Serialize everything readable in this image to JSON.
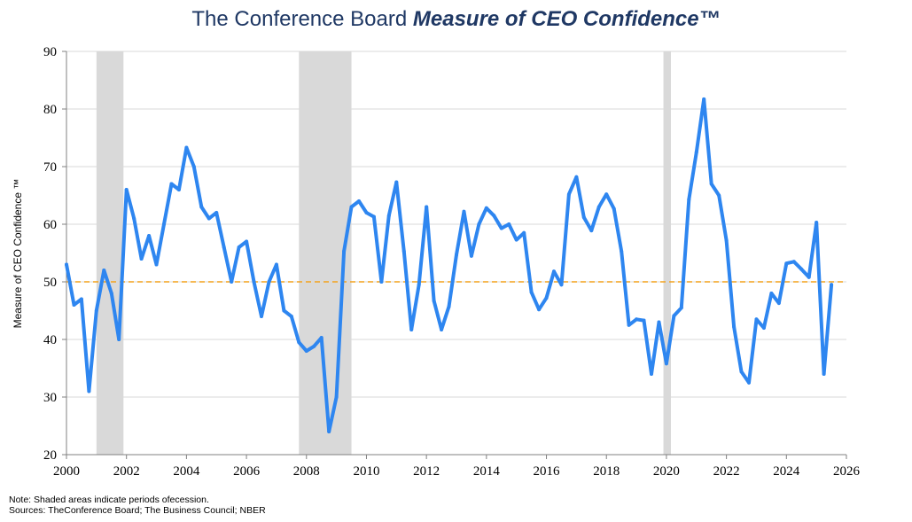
{
  "title": {
    "prefix": "The Conference Board ",
    "emphasis": "Measure of CEO Confidence™"
  },
  "notes": {
    "line1": "Note: Shaded areas indicate periods ofecession.",
    "line2": "Sources: TheConference Board; The Business Council; NBER"
  },
  "colors": {
    "line": "#2e86f0",
    "reference": "#f4a21c",
    "recession": "#d9d9d9",
    "grid": "#d9d9d9",
    "title": "#1f3864"
  },
  "chart_data": {
    "type": "line",
    "title": "The Conference Board Measure of CEO Confidence™",
    "xlabel": "",
    "ylabel": "Measure of CEO Confidence ™",
    "xlim": [
      2000,
      2026
    ],
    "ylim": [
      20,
      90
    ],
    "x_ticks": [
      2000,
      2002,
      2004,
      2006,
      2008,
      2010,
      2012,
      2014,
      2016,
      2018,
      2020,
      2022,
      2024,
      2026
    ],
    "y_ticks": [
      20,
      30,
      40,
      50,
      60,
      70,
      80,
      90
    ],
    "grid": true,
    "reference_line": {
      "value": 50,
      "style": "dashed"
    },
    "recessions": [
      {
        "start": 2001.0,
        "end": 2001.9
      },
      {
        "start": 2007.75,
        "end": 2009.5
      },
      {
        "start": 2019.9,
        "end": 2020.15
      }
    ],
    "series": [
      {
        "name": "Measure of CEO Confidence",
        "x": [
          2000.0,
          2000.25,
          2000.5,
          2000.75,
          2001.0,
          2001.25,
          2001.5,
          2001.75,
          2002.0,
          2002.25,
          2002.5,
          2002.75,
          2003.0,
          2003.25,
          2003.5,
          2003.75,
          2004.0,
          2004.25,
          2004.5,
          2004.75,
          2005.0,
          2005.25,
          2005.5,
          2005.75,
          2006.0,
          2006.25,
          2006.5,
          2006.75,
          2007.0,
          2007.25,
          2007.5,
          2007.75,
          2008.0,
          2008.25,
          2008.5,
          2008.75,
          2009.0,
          2009.25,
          2009.5,
          2009.75,
          2010.0,
          2010.25,
          2010.5,
          2010.75,
          2011.0,
          2011.25,
          2011.5,
          2011.75,
          2012.0,
          2012.25,
          2012.5,
          2012.75,
          2013.0,
          2013.25,
          2013.5,
          2013.75,
          2014.0,
          2014.25,
          2014.5,
          2014.75,
          2015.0,
          2015.25,
          2015.5,
          2015.75,
          2016.0,
          2016.25,
          2016.5,
          2016.75,
          2017.0,
          2017.25,
          2017.5,
          2017.75,
          2018.0,
          2018.25,
          2018.5,
          2018.75,
          2019.0,
          2019.25,
          2019.5,
          2019.75,
          2020.0,
          2020.25,
          2020.5,
          2020.75,
          2021.0,
          2021.25,
          2021.5,
          2021.75,
          2022.0,
          2022.25,
          2022.5,
          2022.75,
          2023.0,
          2023.25,
          2023.5,
          2023.75,
          2024.0,
          2024.25,
          2024.5,
          2024.75,
          2025.0,
          2025.25,
          2025.5
        ],
        "values": [
          53,
          46,
          47,
          31,
          45,
          52,
          48,
          40,
          66,
          61,
          54,
          58,
          53,
          60,
          67,
          66,
          73.3,
          70,
          63,
          61,
          62,
          56,
          50,
          56,
          57,
          50,
          44,
          50,
          53,
          45,
          44,
          39.5,
          38,
          38.8,
          40.3,
          24,
          30,
          55.3,
          63,
          64,
          62,
          61.3,
          50,
          61.5,
          67.3,
          55.3,
          41.7,
          49.5,
          63,
          46.7,
          41.7,
          45.7,
          54.7,
          62.2,
          54.5,
          60,
          62.8,
          61.5,
          59.3,
          60,
          57.3,
          58.5,
          48.2,
          45.2,
          47.2,
          51.8,
          49.5,
          65.2,
          68.2,
          61.2,
          58.9,
          63,
          65.2,
          62.7,
          55.3,
          42.5,
          43.5,
          43.3,
          34,
          43,
          35.8,
          44.1,
          45.5,
          64.3,
          72.5,
          81.7,
          67,
          65,
          57.2,
          42.2,
          34.4,
          32.5,
          43.5,
          42,
          48,
          46.3,
          53.2,
          53.5,
          52.2,
          50.8,
          60.3,
          34,
          49.5
        ]
      }
    ]
  }
}
